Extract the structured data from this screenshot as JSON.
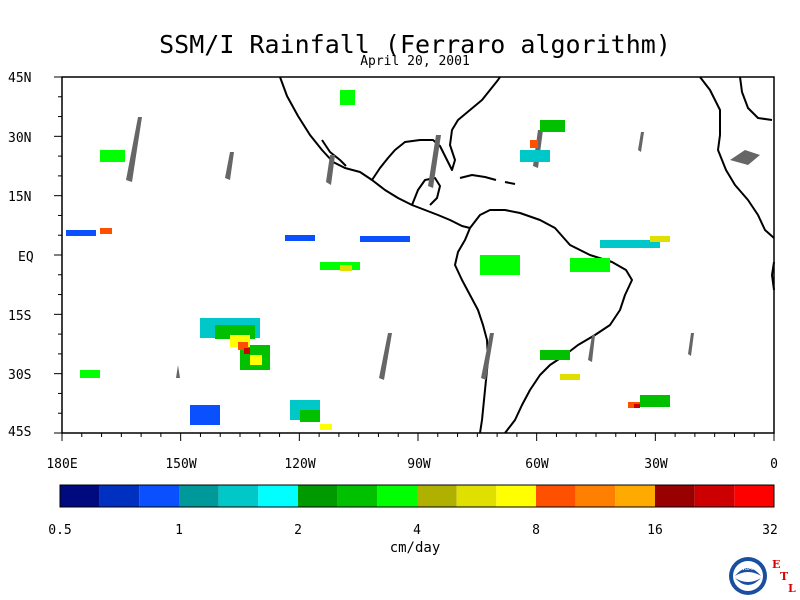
{
  "title": "SSM/I Rainfall (Ferraro algorithm)",
  "subtitle": "April 20, 2001",
  "lat_labels": [
    "45N",
    "30N",
    "15N",
    "EQ",
    "15S",
    "30S",
    "45S"
  ],
  "lon_labels": [
    "180E",
    "150W",
    "120W",
    "90W",
    "60W",
    "30W",
    "0"
  ],
  "colorbar": {
    "colors": [
      "#000a7f",
      "#0030c0",
      "#0a50ff",
      "#00999a",
      "#00c8c8",
      "#00ffff",
      "#009900",
      "#00c000",
      "#00ff00",
      "#b0b000",
      "#e0e000",
      "#ffff00",
      "#ff5000",
      "#ff8000",
      "#ffaa00",
      "#990000",
      "#cc0000",
      "#ff0000"
    ],
    "tick_labels": [
      "0.5",
      "1",
      "2",
      "4",
      "8",
      "16",
      "32"
    ],
    "unit": "cm/day"
  },
  "logo": {
    "seal_text": "NOAA",
    "letters": [
      "E",
      "T",
      "L"
    ]
  }
}
